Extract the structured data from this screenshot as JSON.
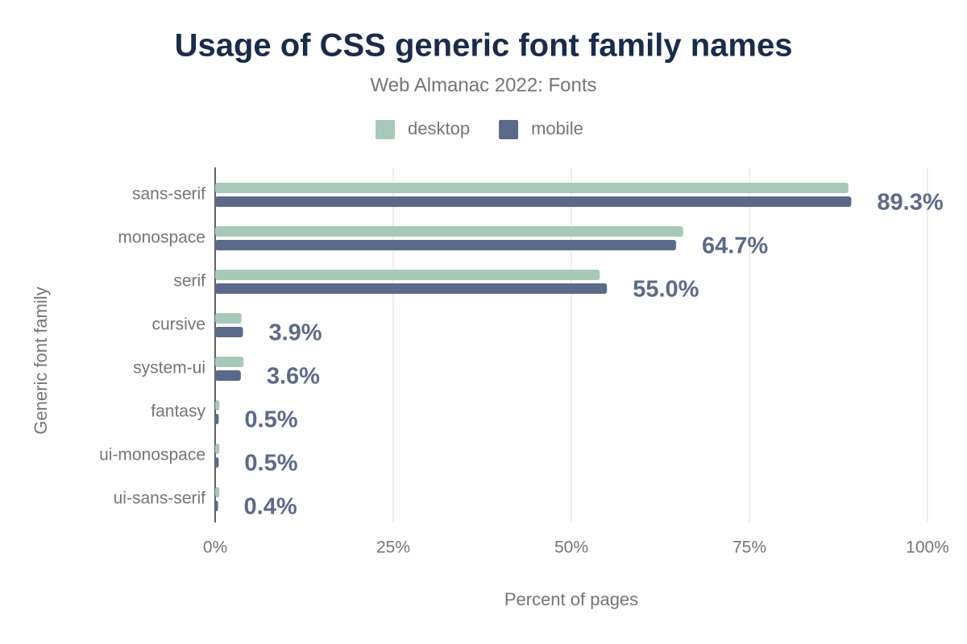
{
  "chart_data": {
    "type": "bar",
    "orientation": "horizontal",
    "title": "Usage of CSS generic font family names",
    "subtitle": "Web Almanac 2022: Fonts",
    "x_label": "Percent of pages",
    "y_label": "Generic font family",
    "categories": [
      "sans-serif",
      "monospace",
      "serif",
      "cursive",
      "system-ui",
      "fantasy",
      "ui-monospace",
      "ui-sans-serif"
    ],
    "series": [
      {
        "name": "desktop",
        "color": "#a8c9b9",
        "values": [
          88.9,
          65.7,
          54.0,
          3.7,
          4.0,
          0.6,
          0.6,
          0.6
        ]
      },
      {
        "name": "mobile",
        "color": "#5b6a89",
        "values": [
          89.3,
          64.7,
          55.0,
          3.9,
          3.6,
          0.5,
          0.5,
          0.4
        ],
        "value_labels": [
          "89.3%",
          "64.7%",
          "55.0%",
          "3.9%",
          "3.6%",
          "0.5%",
          "0.5%",
          "0.4%"
        ]
      }
    ],
    "xlim": [
      0,
      100
    ],
    "xticks": [
      {
        "value": 0,
        "label": "0%"
      },
      {
        "value": 25,
        "label": "25%"
      },
      {
        "value": 50,
        "label": "50%"
      },
      {
        "value": 75,
        "label": "75%"
      },
      {
        "value": 100,
        "label": "100%"
      }
    ],
    "grid": true,
    "legend": "top"
  }
}
